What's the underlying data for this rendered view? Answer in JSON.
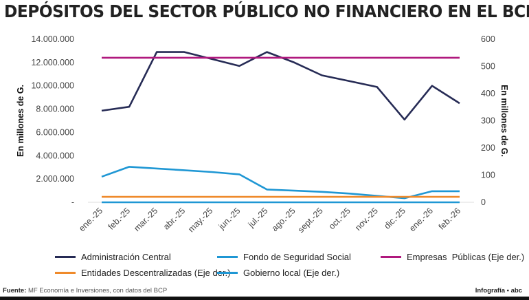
{
  "chart_data": {
    "type": "line",
    "title": "DEPÓSITOS DEL SECTOR PÚBLICO NO FINANCIERO EN EL BCP",
    "categories": [
      "ene.-25",
      "feb.-25",
      "mar.-25",
      "abr.-25",
      "may.-25",
      "jun.-25",
      "jul.-25",
      "ago.-25",
      "sept.-25",
      "oct.-25",
      "nov.-25",
      "dic.-25",
      "ene.-26",
      "feb.-26"
    ],
    "ylabel": "En millones de G.",
    "ylabel_right": "En millones de G.",
    "ylim": [
      0,
      14000000
    ],
    "ylim_right": [
      0,
      600
    ],
    "yticks": [
      "-",
      "2.000.000",
      "4.000.000",
      "6.000.000",
      "8.000.000",
      "10.000.000",
      "12.000.000",
      "14.000.000"
    ],
    "yticks_right": [
      "0",
      "100",
      "200",
      "300",
      "400",
      "500",
      "600"
    ],
    "grid": false,
    "legend_position": "bottom",
    "series": [
      {
        "name": "Administración Central",
        "axis": "left",
        "color": "#262b55",
        "values": [
          7860000,
          8200000,
          12900000,
          12900000,
          12300000,
          11700000,
          12900000,
          12000000,
          10900000,
          10400000,
          9900000,
          7100000,
          10000000,
          8500000
        ]
      },
      {
        "name": "Fondo de Seguridad Social",
        "axis": "left",
        "color": "#1f97d4",
        "values": [
          2200000,
          3050000,
          2900000,
          2750000,
          2600000,
          2400000,
          1100000,
          1000000,
          900000,
          750000,
          550000,
          350000,
          950000,
          950000
        ]
      },
      {
        "name": "Empresas  Públicas (Eje der.)",
        "axis": "right",
        "color": "#b0197e",
        "values": [
          532,
          532,
          532,
          532,
          532,
          532,
          532,
          532,
          532,
          532,
          532,
          532,
          532,
          532
        ]
      },
      {
        "name": "Entidades Descentralizadas (Eje der.)",
        "axis": "right",
        "color": "#ef8a2b",
        "values": [
          20,
          20,
          20,
          20,
          20,
          20,
          20,
          20,
          20,
          20,
          20,
          20,
          20,
          20
        ]
      },
      {
        "name": "Gobierno local (Eje der.)",
        "axis": "right",
        "color": "#1f97d4",
        "values": [
          0,
          0,
          0,
          0,
          0,
          0,
          0,
          0,
          0,
          0,
          0,
          0,
          0,
          0
        ]
      }
    ]
  },
  "footer": {
    "source_label": "Fuente:",
    "source_text": " MF Economía e Inversiones, con datos del BCP",
    "credit": "Infografía • abc"
  }
}
